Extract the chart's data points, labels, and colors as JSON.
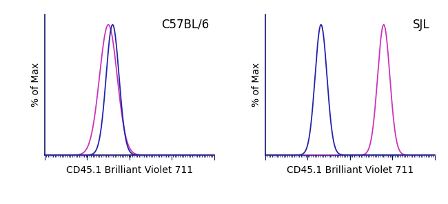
{
  "panel1_label": "C57BL/6",
  "panel2_label": "SJL",
  "xlabel": "CD45.1 Brilliant Violet 711",
  "ylabel": "% of Max",
  "blue_color": "#2222aa",
  "pink_color": "#cc33bb",
  "spine_color": "#111166",
  "background_color": "#ffffff",
  "panel1": {
    "blue_mean": 0.4,
    "blue_std": 0.038,
    "pink_mean": 0.375,
    "pink_std": 0.052
  },
  "panel2": {
    "blue_mean": 0.33,
    "blue_std": 0.035,
    "pink_mean": 0.7,
    "pink_std": 0.036
  },
  "xlim": [
    0,
    1
  ],
  "ylim": [
    0,
    1.08
  ],
  "linewidth": 1.3,
  "xlabel_fontsize": 10,
  "ylabel_fontsize": 10,
  "annotation_fontsize": 12,
  "num_major_ticks": 5,
  "num_minor_ticks": 100
}
